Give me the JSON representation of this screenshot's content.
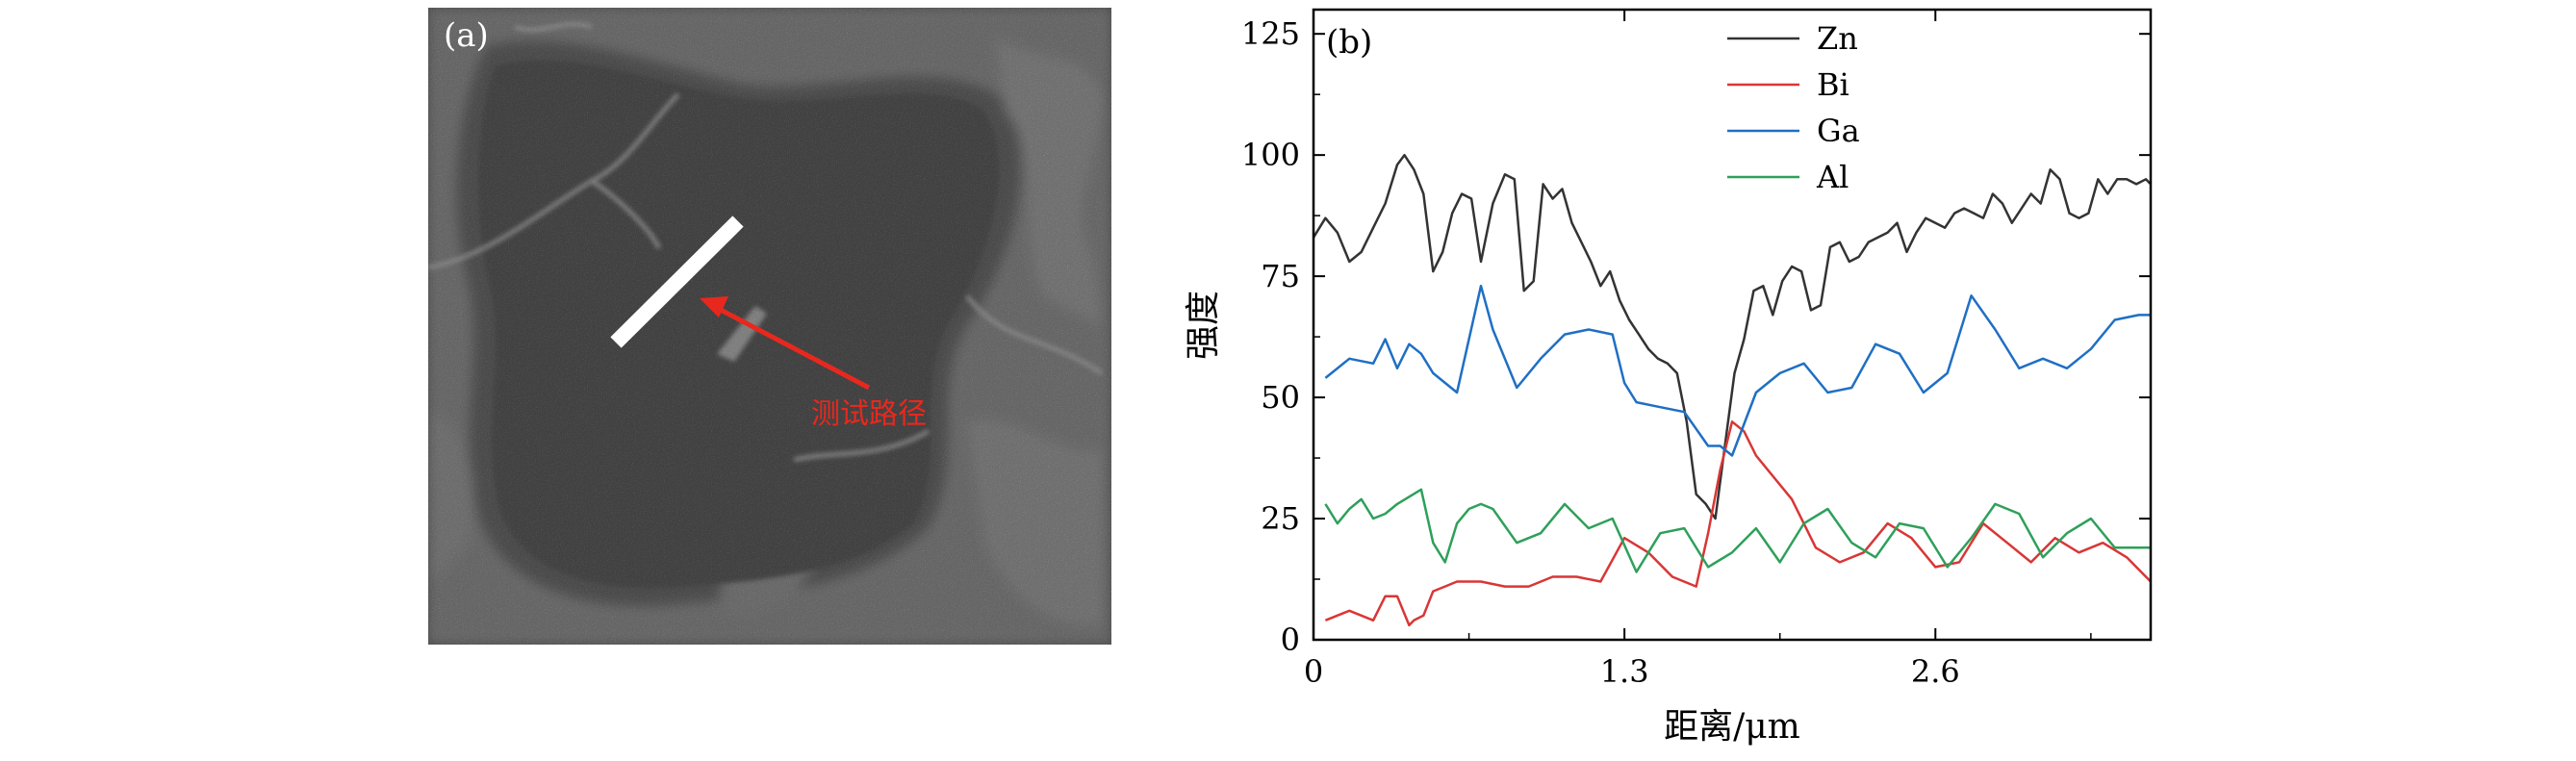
{
  "panel_a": {
    "label": "(a)",
    "annotation": "测试路径",
    "colors": {
      "annotation": "#e8281e",
      "path_bar": "#ffffff",
      "background": "#3a3a3a"
    }
  },
  "chart_data": {
    "type": "line",
    "panel_label": "(b)",
    "xlabel": "距离/μm",
    "ylabel": "强度",
    "xlim": [
      0,
      3.5
    ],
    "ylim": [
      0,
      130
    ],
    "xticks": [
      "0",
      "1.3",
      "2.6"
    ],
    "xtick_values": [
      0,
      1.3,
      2.6
    ],
    "yticks": [
      "0",
      "25",
      "50",
      "75",
      "100",
      "125"
    ],
    "ytick_values": [
      0,
      25,
      50,
      75,
      100,
      125
    ],
    "legend_position": "top-center",
    "series": [
      {
        "name": "Zn",
        "color": "#333333",
        "x": [
          0,
          0.05,
          0.1,
          0.15,
          0.2,
          0.25,
          0.3,
          0.35,
          0.38,
          0.42,
          0.46,
          0.5,
          0.54,
          0.58,
          0.62,
          0.66,
          0.7,
          0.75,
          0.8,
          0.84,
          0.88,
          0.92,
          0.96,
          1.0,
          1.04,
          1.08,
          1.12,
          1.16,
          1.2,
          1.24,
          1.28,
          1.32,
          1.36,
          1.4,
          1.44,
          1.48,
          1.52,
          1.56,
          1.6,
          1.64,
          1.68,
          1.72,
          1.76,
          1.8,
          1.84,
          1.88,
          1.92,
          1.96,
          2.0,
          2.04,
          2.08,
          2.12,
          2.16,
          2.2,
          2.24,
          2.28,
          2.32,
          2.36,
          2.4,
          2.44,
          2.48,
          2.52,
          2.56,
          2.6,
          2.64,
          2.68,
          2.72,
          2.76,
          2.8,
          2.84,
          2.88,
          2.92,
          2.96,
          3.0,
          3.04,
          3.08,
          3.12,
          3.16,
          3.2,
          3.24,
          3.28,
          3.32,
          3.36,
          3.4,
          3.44,
          3.48,
          3.5
        ],
        "values": [
          83,
          87,
          84,
          78,
          80,
          85,
          90,
          98,
          100,
          97,
          92,
          76,
          80,
          88,
          92,
          91,
          78,
          90,
          96,
          95,
          72,
          74,
          94,
          91,
          93,
          86,
          82,
          78,
          73,
          76,
          70,
          66,
          63,
          60,
          58,
          57,
          55,
          45,
          30,
          28,
          25,
          40,
          55,
          62,
          72,
          73,
          67,
          74,
          77,
          76,
          68,
          69,
          81,
          82,
          78,
          79,
          82,
          83,
          84,
          86,
          80,
          84,
          87,
          86,
          85,
          88,
          89,
          88,
          87,
          92,
          90,
          86,
          89,
          92,
          90,
          97,
          95,
          88,
          87,
          88,
          95,
          92,
          95,
          95,
          94,
          95,
          94
        ]
      },
      {
        "name": "Bi",
        "color": "#d93636",
        "x": [
          0.05,
          0.15,
          0.25,
          0.3,
          0.35,
          0.4,
          0.42,
          0.46,
          0.5,
          0.55,
          0.6,
          0.7,
          0.8,
          0.9,
          1.0,
          1.1,
          1.2,
          1.3,
          1.4,
          1.5,
          1.6,
          1.65,
          1.7,
          1.75,
          1.8,
          1.85,
          1.9,
          2.0,
          2.1,
          2.2,
          2.3,
          2.4,
          2.5,
          2.6,
          2.7,
          2.8,
          2.9,
          3.0,
          3.1,
          3.2,
          3.3,
          3.4,
          3.5
        ],
        "values": [
          4,
          6,
          4,
          9,
          9,
          3,
          4,
          5,
          10,
          11,
          12,
          12,
          11,
          11,
          13,
          13,
          12,
          21,
          18,
          13,
          11,
          22,
          35,
          45,
          43,
          38,
          35,
          29,
          19,
          16,
          18,
          24,
          21,
          15,
          16,
          24,
          20,
          16,
          21,
          18,
          20,
          17,
          12
        ]
      },
      {
        "name": "Ga",
        "color": "#1f6fc4",
        "x": [
          0.05,
          0.15,
          0.25,
          0.3,
          0.35,
          0.4,
          0.45,
          0.5,
          0.6,
          0.7,
          0.75,
          0.85,
          0.95,
          1.05,
          1.15,
          1.25,
          1.3,
          1.35,
          1.45,
          1.55,
          1.65,
          1.7,
          1.75,
          1.85,
          1.95,
          2.05,
          2.15,
          2.25,
          2.35,
          2.45,
          2.55,
          2.65,
          2.75,
          2.85,
          2.95,
          3.05,
          3.15,
          3.25,
          3.35,
          3.45,
          3.5
        ],
        "values": [
          54,
          58,
          57,
          62,
          56,
          61,
          59,
          55,
          51,
          73,
          64,
          52,
          58,
          63,
          64,
          63,
          53,
          49,
          48,
          47,
          40,
          40,
          38,
          51,
          55,
          57,
          51,
          52,
          61,
          59,
          51,
          55,
          71,
          64,
          56,
          58,
          56,
          60,
          66,
          67,
          67
        ]
      },
      {
        "name": "Al",
        "color": "#2ea05a",
        "x": [
          0.05,
          0.1,
          0.15,
          0.2,
          0.25,
          0.3,
          0.35,
          0.45,
          0.5,
          0.55,
          0.6,
          0.65,
          0.7,
          0.75,
          0.85,
          0.95,
          1.05,
          1.15,
          1.25,
          1.35,
          1.45,
          1.55,
          1.65,
          1.75,
          1.85,
          1.95,
          2.05,
          2.15,
          2.25,
          2.35,
          2.45,
          2.55,
          2.65,
          2.75,
          2.85,
          2.95,
          3.05,
          3.15,
          3.25,
          3.35,
          3.45,
          3.5
        ],
        "values": [
          28,
          24,
          27,
          29,
          25,
          26,
          28,
          31,
          20,
          16,
          24,
          27,
          28,
          27,
          20,
          22,
          28,
          23,
          25,
          14,
          22,
          23,
          15,
          18,
          23,
          16,
          24,
          27,
          20,
          17,
          24,
          23,
          15,
          21,
          28,
          26,
          17,
          22,
          25,
          19,
          19,
          19
        ]
      }
    ]
  }
}
